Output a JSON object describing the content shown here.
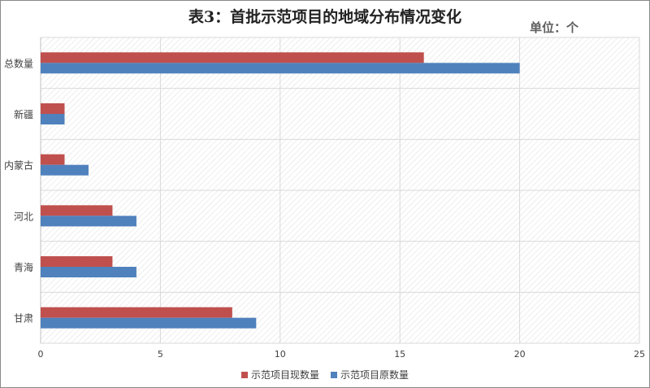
{
  "chart_data": {
    "type": "bar",
    "orientation": "horizontal",
    "title": "表3：首批示范项目的地域分布情况变化",
    "unit_label": "单位：个",
    "categories": [
      "总数量",
      "新疆",
      "内蒙古",
      "河北",
      "青海",
      "甘肃"
    ],
    "series": [
      {
        "name": "示范项目现数量",
        "color": "#c0504d",
        "values": [
          16,
          1,
          1,
          3,
          3,
          8
        ]
      },
      {
        "name": "示范项目原数量",
        "color": "#4f81bd",
        "values": [
          20,
          1,
          2,
          4,
          4,
          9
        ]
      }
    ],
    "xlim": [
      0,
      25
    ],
    "xticks": [
      "0",
      "5",
      "10",
      "15",
      "20",
      "25"
    ],
    "grid": true,
    "legend_position": "bottom"
  }
}
